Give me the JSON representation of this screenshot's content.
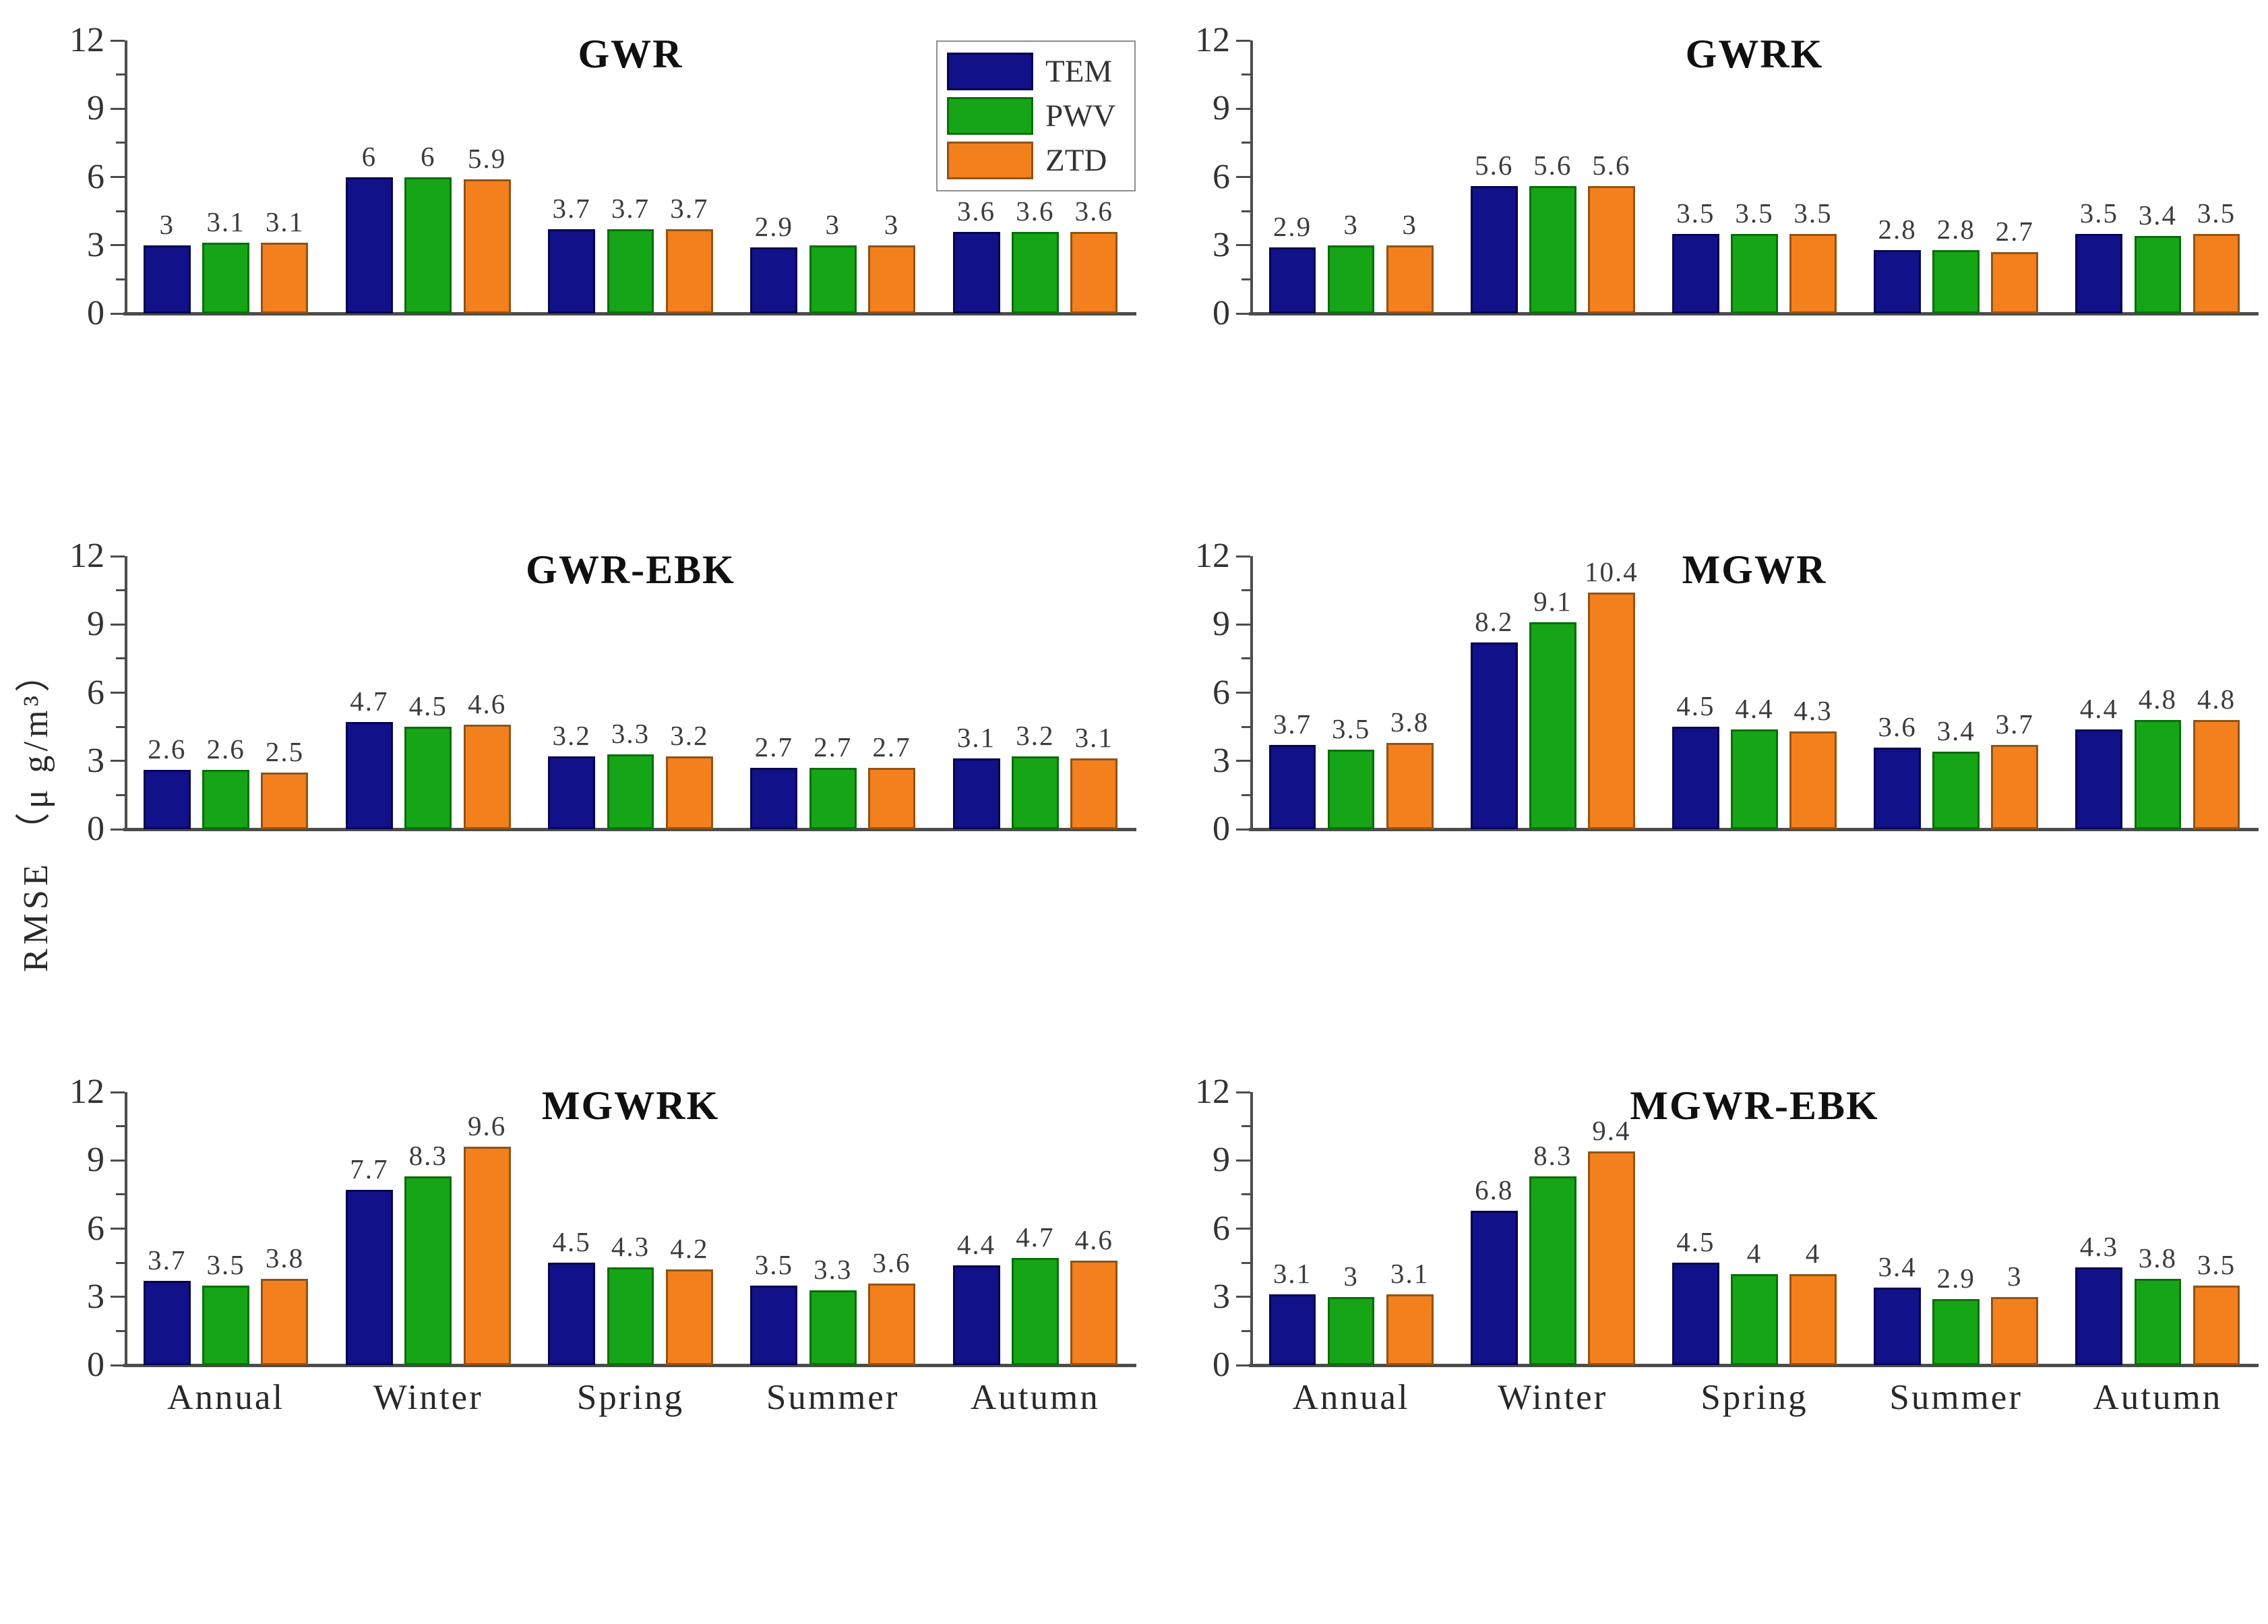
{
  "figure": {
    "y_axis_label": "RMSE （μ g/m³）",
    "background": "#ffffff",
    "axis_color": "#4c4c4c",
    "label_color": "#3c3c3c"
  },
  "legend": {
    "position": "top-right-of-first-panel",
    "entries": [
      {
        "label": "TEM",
        "color": "#11118a",
        "border": "#06064e"
      },
      {
        "label": "PWV",
        "color": "#16a516",
        "border": "#0b6e0b"
      },
      {
        "label": "ZTD",
        "color": "#f3801d",
        "border": "#8f5416"
      }
    ]
  },
  "chart_data": [
    {
      "type": "bar",
      "title": "GWR",
      "categories": [
        "Annual",
        "Winter",
        "Spring",
        "Summer",
        "Autumn"
      ],
      "series": [
        {
          "name": "TEM",
          "values": [
            3,
            6,
            3.7,
            2.9,
            3.6
          ]
        },
        {
          "name": "PWV",
          "values": [
            3.1,
            6,
            3.7,
            3,
            3.6
          ]
        },
        {
          "name": "ZTD",
          "values": [
            3.1,
            5.9,
            3.7,
            3,
            3.6
          ]
        }
      ],
      "ylim": [
        0,
        12
      ],
      "yticks": [
        0,
        3,
        6,
        9,
        12
      ],
      "minor_yticks": [
        1.5,
        4.5,
        7.5,
        10.5
      ],
      "show_x_labels": false,
      "has_legend": true
    },
    {
      "type": "bar",
      "title": "GWRK",
      "categories": [
        "Annual",
        "Winter",
        "Spring",
        "Summer",
        "Autumn"
      ],
      "series": [
        {
          "name": "TEM",
          "values": [
            2.9,
            5.6,
            3.5,
            2.8,
            3.5
          ]
        },
        {
          "name": "PWV",
          "values": [
            3,
            5.6,
            3.5,
            2.8,
            3.4
          ]
        },
        {
          "name": "ZTD",
          "values": [
            3,
            5.6,
            3.5,
            2.7,
            3.5
          ]
        }
      ],
      "ylim": [
        0,
        12
      ],
      "yticks": [
        0,
        3,
        6,
        9,
        12
      ],
      "minor_yticks": [
        1.5,
        4.5,
        7.5,
        10.5
      ],
      "show_x_labels": false,
      "has_legend": false
    },
    {
      "type": "bar",
      "title": "GWR-EBK",
      "categories": [
        "Annual",
        "Winter",
        "Spring",
        "Summer",
        "Autumn"
      ],
      "series": [
        {
          "name": "TEM",
          "values": [
            2.6,
            4.7,
            3.2,
            2.7,
            3.1
          ]
        },
        {
          "name": "PWV",
          "values": [
            2.6,
            4.5,
            3.3,
            2.7,
            3.2
          ]
        },
        {
          "name": "ZTD",
          "values": [
            2.5,
            4.6,
            3.2,
            2.7,
            3.1
          ]
        }
      ],
      "ylim": [
        0,
        12
      ],
      "yticks": [
        0,
        3,
        6,
        9,
        12
      ],
      "minor_yticks": [
        1.5,
        4.5,
        7.5,
        10.5
      ],
      "show_x_labels": false,
      "has_legend": false
    },
    {
      "type": "bar",
      "title": "MGWR",
      "categories": [
        "Annual",
        "Winter",
        "Spring",
        "Summer",
        "Autumn"
      ],
      "series": [
        {
          "name": "TEM",
          "values": [
            3.7,
            8.2,
            4.5,
            3.6,
            4.4
          ]
        },
        {
          "name": "PWV",
          "values": [
            3.5,
            9.1,
            4.4,
            3.4,
            4.8
          ]
        },
        {
          "name": "ZTD",
          "values": [
            3.8,
            10.4,
            4.3,
            3.7,
            4.8
          ]
        }
      ],
      "ylim": [
        0,
        12
      ],
      "yticks": [
        0,
        3,
        6,
        9,
        12
      ],
      "minor_yticks": [
        1.5,
        4.5,
        7.5,
        10.5
      ],
      "show_x_labels": false,
      "has_legend": false
    },
    {
      "type": "bar",
      "title": "MGWRK",
      "categories": [
        "Annual",
        "Winter",
        "Spring",
        "Summer",
        "Autumn"
      ],
      "series": [
        {
          "name": "TEM",
          "values": [
            3.7,
            7.7,
            4.5,
            3.5,
            4.4
          ]
        },
        {
          "name": "PWV",
          "values": [
            3.5,
            8.3,
            4.3,
            3.3,
            4.7
          ]
        },
        {
          "name": "ZTD",
          "values": [
            3.8,
            9.6,
            4.2,
            3.6,
            4.6
          ]
        }
      ],
      "ylim": [
        0,
        12
      ],
      "yticks": [
        0,
        3,
        6,
        9,
        12
      ],
      "minor_yticks": [
        1.5,
        4.5,
        7.5,
        10.5
      ],
      "show_x_labels": true,
      "has_legend": false
    },
    {
      "type": "bar",
      "title": "MGWR-EBK",
      "categories": [
        "Annual",
        "Winter",
        "Spring",
        "Summer",
        "Autumn"
      ],
      "series": [
        {
          "name": "TEM",
          "values": [
            3.1,
            6.8,
            4.5,
            3.4,
            4.3
          ]
        },
        {
          "name": "PWV",
          "values": [
            3,
            8.3,
            4,
            2.9,
            3.8
          ]
        },
        {
          "name": "ZTD",
          "values": [
            3.1,
            9.4,
            4,
            3,
            3.5
          ]
        }
      ],
      "ylim": [
        0,
        12
      ],
      "yticks": [
        0,
        3,
        6,
        9,
        12
      ],
      "minor_yticks": [
        1.5,
        4.5,
        7.5,
        10.5
      ],
      "show_x_labels": true,
      "has_legend": false
    }
  ]
}
